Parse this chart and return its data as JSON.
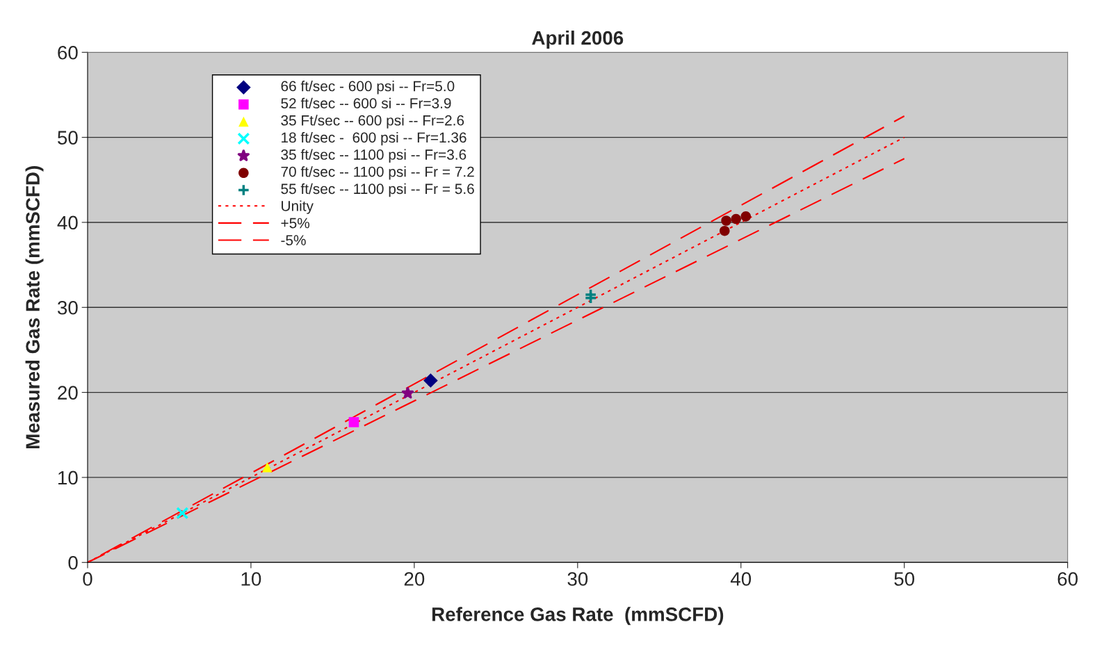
{
  "chart_data": {
    "type": "scatter",
    "title": "April 2006",
    "xlabel": "Reference Gas Rate  (mmSCFD)",
    "ylabel": "Measured Gas Rate (mmSCFD)",
    "xlim": [
      0,
      60
    ],
    "ylim": [
      0,
      60
    ],
    "xticks": [
      0,
      10,
      20,
      30,
      40,
      50,
      60
    ],
    "yticks": [
      0,
      10,
      20,
      30,
      40,
      50,
      60
    ],
    "grid": "y",
    "legend": "top left",
    "series": [
      {
        "name": "66 ft/sec - 600 psi -- Fr=5.0",
        "color": "#000080",
        "marker": "diamond",
        "x": [
          21.0
        ],
        "values": [
          21.4
        ]
      },
      {
        "name": "52 ft/sec -- 600 si -- Fr=3.9",
        "color": "#ff00ff",
        "marker": "square",
        "x": [
          16.3
        ],
        "values": [
          16.5
        ]
      },
      {
        "name": "35 Ft/sec -- 600 psi -- Fr=2.6",
        "color": "#ffff00",
        "marker": "triangle",
        "x": [
          11.0
        ],
        "values": [
          11.2
        ]
      },
      {
        "name": "18 ft/sec -  600 psi -- Fr=1.36",
        "color": "#00ffff",
        "marker": "cross",
        "x": [
          5.8
        ],
        "values": [
          5.8
        ]
      },
      {
        "name": "35 ft/sec -- 1100 psi -- Fr=3.6",
        "color": "#800080",
        "marker": "star",
        "x": [
          19.6
        ],
        "values": [
          19.9
        ]
      },
      {
        "name": "70 ft/sec -- 1100 psi -- Fr = 7.2",
        "color": "#800000",
        "marker": "circle",
        "x": [
          39.0,
          39.1,
          39.7,
          40.3
        ],
        "values": [
          39.0,
          40.2,
          40.4,
          40.7
        ]
      },
      {
        "name": "55 ft/sec -- 1100 psi -- Fr = 5.6",
        "color": "#008080",
        "marker": "plus",
        "x": [
          30.8,
          30.8
        ],
        "values": [
          31.1,
          31.5
        ]
      },
      {
        "name": "Unity",
        "type": "line",
        "color": "#ff0000",
        "line_style": "dotted",
        "x": [
          0,
          50
        ],
        "values": [
          0,
          50
        ]
      },
      {
        "name": "+5%",
        "type": "line",
        "color": "#ff0000",
        "line_style": "dashed",
        "x": [
          0,
          50
        ],
        "values": [
          0,
          52.5
        ]
      },
      {
        "name": "-5%",
        "type": "line",
        "color": "#ff0000",
        "line_style": "dashed",
        "x": [
          0,
          50
        ],
        "values": [
          0,
          47.5
        ]
      }
    ]
  }
}
